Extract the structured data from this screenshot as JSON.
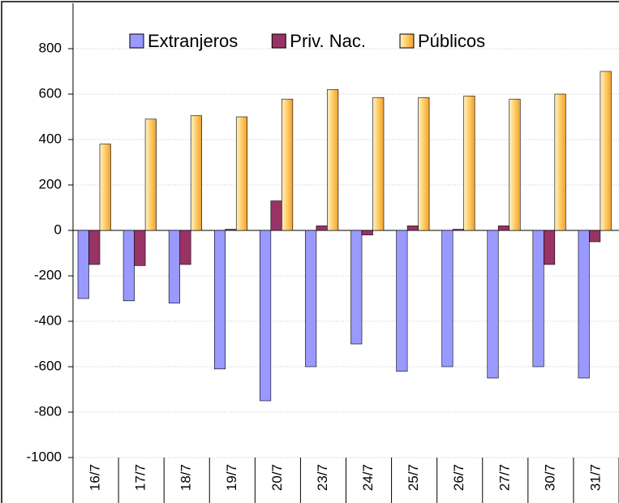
{
  "chart_data": {
    "type": "bar",
    "categories": [
      "16/7",
      "17/7",
      "18/7",
      "19/7",
      "20/7",
      "23/7",
      "24/7",
      "25/7",
      "26/7",
      "27/7",
      "30/7",
      "31/7"
    ],
    "series": [
      {
        "name": "Extranjeros",
        "color": "#9999ff",
        "values": [
          -300,
          -310,
          -320,
          -610,
          -750,
          -600,
          -500,
          -620,
          -600,
          -650,
          -600,
          -650
        ]
      },
      {
        "name": "Priv. Nac.",
        "color": "#993366",
        "values": [
          -150,
          -155,
          -150,
          5,
          130,
          20,
          -20,
          20,
          5,
          20,
          -150,
          -50
        ]
      },
      {
        "name": "Públicos",
        "color": "#ffcc66",
        "values": [
          380,
          490,
          505,
          500,
          578,
          620,
          585,
          585,
          592,
          578,
          600,
          700
        ]
      }
    ],
    "ylim": [
      -1000,
      1000
    ],
    "yticks": [
      -1000,
      -800,
      -600,
      -400,
      -200,
      0,
      200,
      400,
      600,
      800
    ],
    "grid": true,
    "legend": "top"
  }
}
